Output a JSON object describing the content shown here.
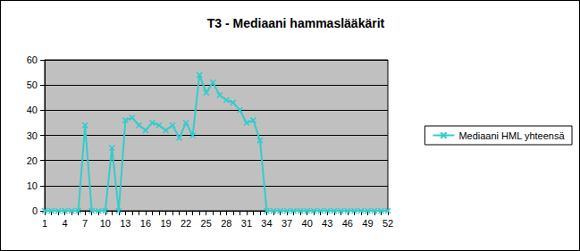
{
  "chart_data": {
    "type": "line",
    "title": "T3 - Mediaani hammaslääkärit",
    "categories": [
      1,
      null,
      null,
      4,
      null,
      null,
      7,
      null,
      null,
      10,
      null,
      null,
      13,
      null,
      null,
      16,
      null,
      null,
      19,
      null,
      null,
      22,
      null,
      null,
      25,
      null,
      null,
      28,
      null,
      null,
      31,
      null,
      null,
      34,
      null,
      null,
      37,
      null,
      null,
      40,
      null,
      null,
      43,
      null,
      null,
      46,
      null,
      null,
      49,
      null,
      null,
      52
    ],
    "series": [
      {
        "name": "Mediaani HML yhteensä",
        "color": "#33CCCC",
        "marker": "x",
        "values": [
          0,
          0,
          0,
          0,
          0,
          0,
          34,
          0,
          0,
          0,
          25,
          0,
          36,
          37,
          34,
          32,
          35,
          34,
          32,
          34,
          29,
          35,
          30,
          54,
          47,
          51,
          46,
          44,
          43,
          40,
          35,
          36,
          28,
          0,
          0,
          0,
          0,
          0,
          0,
          0,
          0,
          0,
          0,
          0,
          0,
          0,
          0,
          0,
          0,
          0,
          0,
          0
        ]
      }
    ],
    "ylim": [
      0,
      60
    ],
    "yticks": [
      0,
      10,
      20,
      30,
      40,
      50,
      60
    ],
    "grid": true,
    "legend": "right"
  }
}
